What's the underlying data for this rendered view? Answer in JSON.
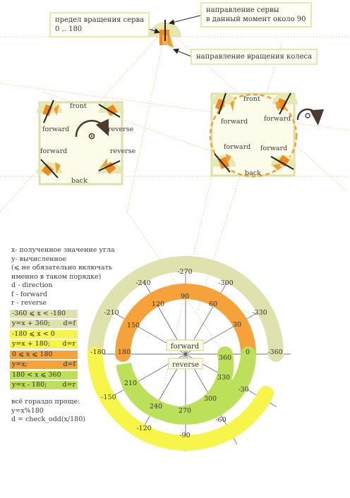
{
  "callouts": {
    "range_line1": "предел вращения серва",
    "range_line2": "0 .. 180",
    "servo_dir_line1": "направление сервы",
    "servo_dir_line2": "в данный момент около 90",
    "wheel_dir": "направление вращения колеса"
  },
  "panels": {
    "front": "front",
    "back": "back",
    "forward": "forward",
    "reverse": "reverse"
  },
  "legend": {
    "lines": [
      "x- полученное значение угла",
      "y- вычисленное",
      "(⩽ не обязательно включать",
      "именно в таком порядке)",
      "d - direction",
      "f - forward",
      "r - reverse"
    ],
    "rules": [
      {
        "cond": "-360 ⩽ x < -180",
        "formula": "y=x + 360;",
        "dir": "d=f",
        "color": "olive"
      },
      {
        "cond": "-180 ⩽ x < 0",
        "formula": "y=x + 180;",
        "dir": "d=r",
        "color": "yellow"
      },
      {
        "cond": "0 ⩽ x ⩽ 180",
        "formula": "y=x;",
        "dir": "d=f",
        "color": "orange"
      },
      {
        "cond": "180 < x ⩽ 360",
        "formula": "y=x - 180;",
        "dir": "d=r",
        "color": "green"
      }
    ],
    "simpler": [
      "всё гораздо проще:",
      "y=x%180",
      "d = check_odd(x/180)"
    ]
  },
  "dial": {
    "center_forward": "forward",
    "center_reverse": "reverse",
    "outer_labels": [
      "-270",
      "-300",
      "-330",
      "-360",
      "-240",
      "-210",
      "-180",
      "-150",
      "-120",
      "-90",
      "-60",
      "-30"
    ],
    "inner_labels": [
      "90",
      "60",
      "30",
      "0",
      "120",
      "150",
      "180",
      "360",
      "330",
      "300",
      "270",
      "240",
      "210"
    ]
  },
  "colors": {
    "olive": "#dfe2ad",
    "yellow": "#f7f44a",
    "orange": "#f6a23b",
    "green": "#bde05a",
    "servo": "#f08a1c",
    "panel_border": "#dde0a8",
    "panel_bg": "#fdfbe9"
  }
}
